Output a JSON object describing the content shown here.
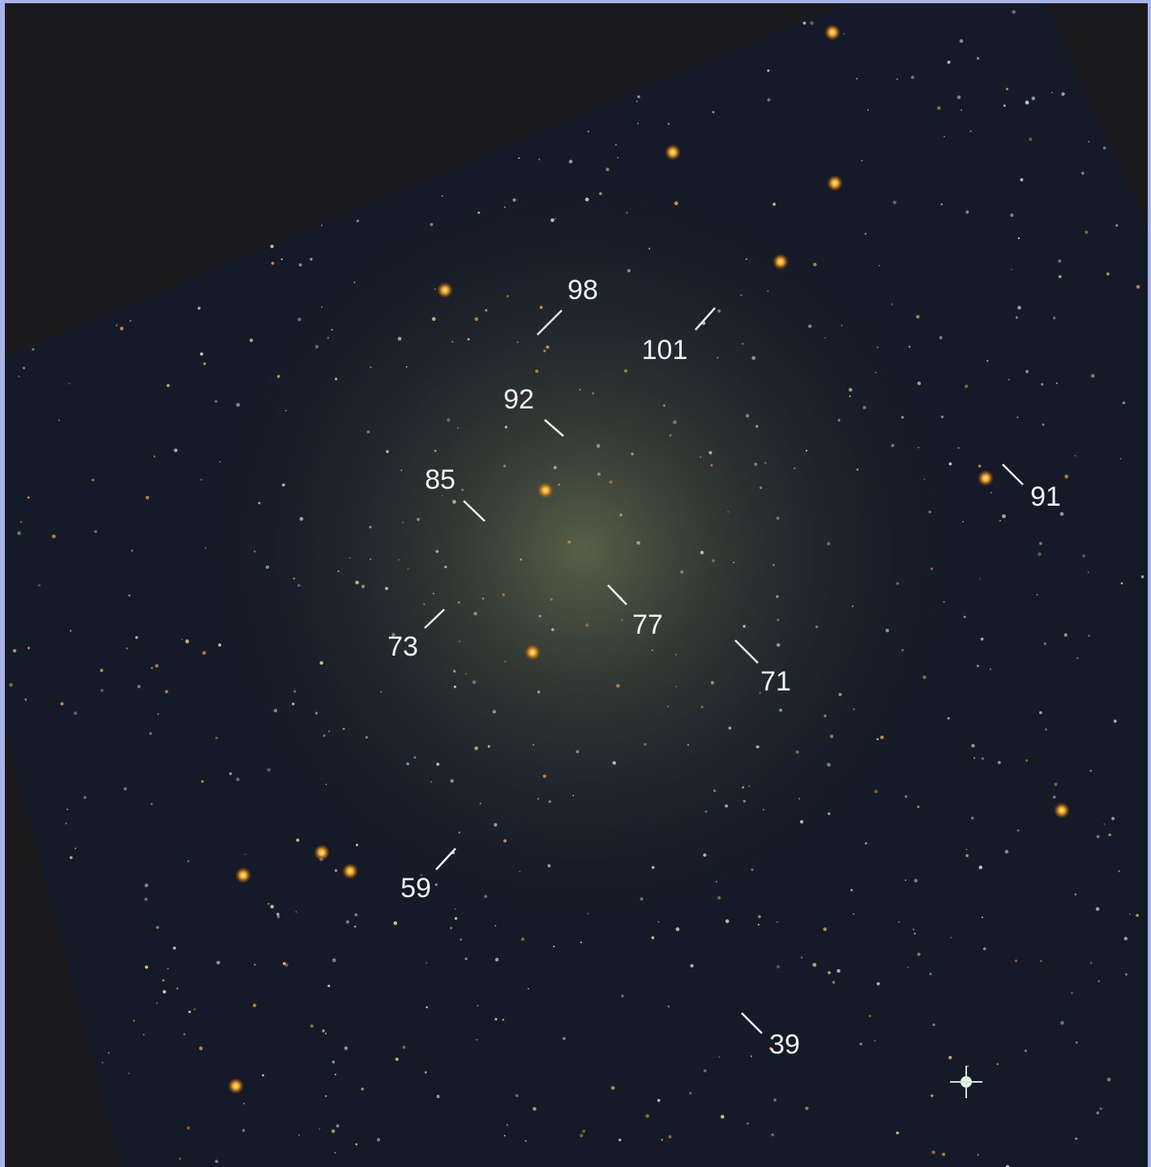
{
  "labels": [
    "98",
    "101",
    "92",
    "85",
    "91",
    "77",
    "73",
    "71",
    "59",
    "39"
  ]
}
